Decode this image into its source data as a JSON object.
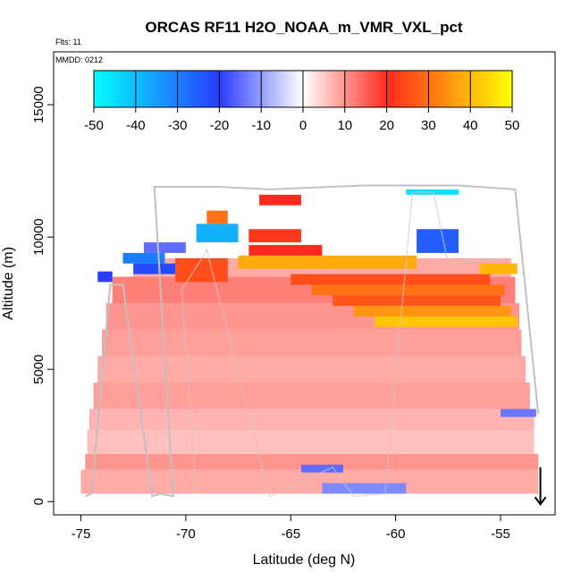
{
  "chart_data": {
    "type": "heatmap",
    "title": "ORCAS RF11 H2O_NOAA_m_VMR_VXL_pct",
    "note_flights": "Flts: 11",
    "note_date": "MMDD: 0212",
    "xlabel": "Latitude (deg N)",
    "ylabel": "Altitude (m)",
    "xlim": [
      -76.3,
      -52.4
    ],
    "ylim": [
      -500,
      17000
    ],
    "x_ticks": [
      -75,
      -70,
      -65,
      -60,
      -55
    ],
    "x_tick_labels": [
      "-75",
      "-70",
      "-65",
      "-60",
      "-55"
    ],
    "y_ticks": [
      0,
      5000,
      10000,
      15000
    ],
    "y_tick_labels": [
      "0",
      "5000",
      "10000",
      "15000"
    ],
    "colorbar": {
      "min": -50,
      "max": 50,
      "ticks": [
        -50,
        -40,
        -30,
        -20,
        -10,
        0,
        10,
        20,
        30,
        40,
        50
      ],
      "tick_labels": [
        "-50",
        "-40",
        "-30",
        "-20",
        "-10",
        "0",
        "10",
        "20",
        "30",
        "40",
        "50"
      ],
      "colors": {
        "low": "#00ffff",
        "mid_low": "#2a3cff",
        "zero": "#ffffff",
        "mid_high": "#ff2a1f",
        "high": "#ffff00"
      }
    },
    "bands": [
      {
        "y0": 300,
        "y1": 1200,
        "x0": -75.0,
        "x1": -53.2,
        "v": 8
      },
      {
        "y0": 1200,
        "y1": 1800,
        "x0": -74.8,
        "x1": -53.2,
        "v": 10
      },
      {
        "y0": 1800,
        "y1": 2700,
        "x0": -74.7,
        "x1": -53.4,
        "v": 6
      },
      {
        "y0": 2700,
        "y1": 3500,
        "x0": -74.6,
        "x1": -53.4,
        "v": 7
      },
      {
        "y0": 3500,
        "y1": 4500,
        "x0": -74.4,
        "x1": -53.6,
        "v": 9
      },
      {
        "y0": 4500,
        "y1": 5500,
        "x0": -74.2,
        "x1": -53.8,
        "v": 8
      },
      {
        "y0": 5500,
        "y1": 6500,
        "x0": -74.0,
        "x1": -54.0,
        "v": 9
      },
      {
        "y0": 6500,
        "y1": 7500,
        "x0": -73.8,
        "x1": -54.1,
        "v": 10
      },
      {
        "y0": 7500,
        "y1": 8500,
        "x0": -73.5,
        "x1": -54.3,
        "v": 12
      },
      {
        "y0": 8500,
        "y1": 9200,
        "x0": -72.5,
        "x1": -54.5,
        "v": 8
      }
    ],
    "features": [
      {
        "y0": 6600,
        "y1": 7000,
        "x0": -61.0,
        "x1": -54.2,
        "v": 42
      },
      {
        "y0": 7000,
        "y1": 7400,
        "x0": -62.0,
        "x1": -54.5,
        "v": 35
      },
      {
        "y0": 7400,
        "y1": 7800,
        "x0": -63.0,
        "x1": -55.0,
        "v": 26
      },
      {
        "y0": 7800,
        "y1": 8200,
        "x0": -64.0,
        "x1": -54.8,
        "v": 30
      },
      {
        "y0": 8200,
        "y1": 8600,
        "x0": -65.0,
        "x1": -55.5,
        "v": 25
      },
      {
        "y0": 8800,
        "y1": 9300,
        "x0": -67.5,
        "x1": -59.0,
        "v": 38
      },
      {
        "y0": 9300,
        "y1": 9700,
        "x0": -67.0,
        "x1": -63.5,
        "v": 20
      },
      {
        "y0": 9800,
        "y1": 10300,
        "x0": -67.0,
        "x1": -64.5,
        "v": 22
      },
      {
        "y0": 8300,
        "y1": 9200,
        "x0": -70.5,
        "x1": -68.0,
        "v": 25
      },
      {
        "y0": 8600,
        "y1": 9000,
        "x0": -72.5,
        "x1": -70.5,
        "v": -22
      },
      {
        "y0": 9000,
        "y1": 9400,
        "x0": -73.0,
        "x1": -71.0,
        "v": -30
      },
      {
        "y0": 9400,
        "y1": 9800,
        "x0": -72.0,
        "x1": -70.0,
        "v": -15
      },
      {
        "y0": 9800,
        "y1": 10500,
        "x0": -69.5,
        "x1": -67.5,
        "v": -38
      },
      {
        "y0": 10500,
        "y1": 11000,
        "x0": -69.0,
        "x1": -68.0,
        "v": 30
      },
      {
        "y0": 11200,
        "y1": 11600,
        "x0": -66.5,
        "x1": -64.5,
        "v": 20
      },
      {
        "y0": 11600,
        "y1": 11800,
        "x0": -59.5,
        "x1": -57.0,
        "v": -45
      },
      {
        "y0": 9400,
        "y1": 10300,
        "x0": -59.0,
        "x1": -57.0,
        "v": -25
      },
      {
        "y0": 1100,
        "y1": 1400,
        "x0": -64.5,
        "x1": -62.5,
        "v": -15
      },
      {
        "y0": 300,
        "y1": 700,
        "x0": -63.5,
        "x1": -59.5,
        "v": -12
      },
      {
        "y0": 3200,
        "y1": 3500,
        "x0": -55.0,
        "x1": -53.3,
        "v": -14
      },
      {
        "y0": 8300,
        "y1": 8700,
        "x0": -74.2,
        "x1": -73.5,
        "v": -20
      },
      {
        "y0": 8600,
        "y1": 9000,
        "x0": -56.0,
        "x1": -54.2,
        "v": 40
      }
    ],
    "flight_track": [
      [
        -74.8,
        200
      ],
      [
        -74.5,
        300
      ],
      [
        -73.6,
        8200
      ],
      [
        -73.0,
        8200
      ],
      [
        -71.6,
        200
      ],
      [
        -71.2,
        300
      ],
      [
        -70.6,
        200
      ],
      [
        -71.5,
        11900
      ],
      [
        -68.5,
        11900
      ],
      [
        -66.0,
        11800
      ],
      [
        -61.5,
        11950
      ],
      [
        -57.0,
        11950
      ],
      [
        -54.3,
        11800
      ],
      [
        -53.2,
        3300
      ]
    ],
    "secondary_track": [
      [
        -69.5,
        300
      ],
      [
        -70.2,
        8000
      ],
      [
        -69.0,
        9500
      ],
      [
        -66.0,
        200
      ],
      [
        -63.0,
        1300
      ],
      [
        -62.0,
        200
      ],
      [
        -60.5,
        300
      ],
      [
        -59.2,
        11700
      ],
      [
        -58.2,
        11700
      ],
      [
        -57.5,
        9000
      ],
      [
        -54.8,
        9200
      ]
    ],
    "end_marker_lat": -53.1
  }
}
